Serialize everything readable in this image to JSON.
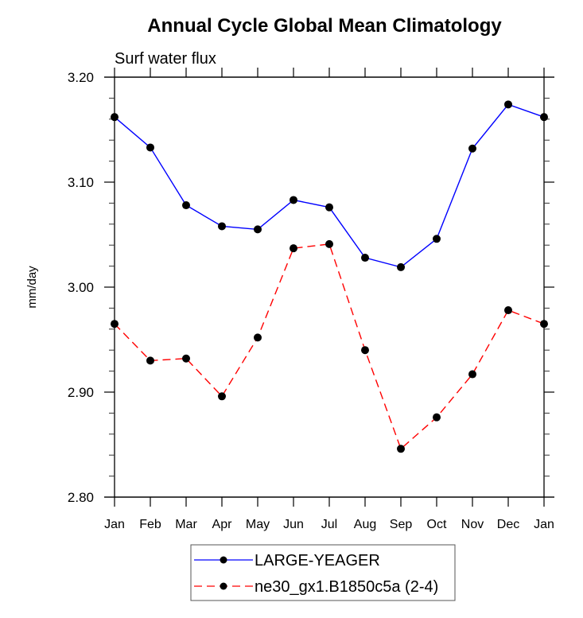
{
  "chart_data": {
    "type": "line",
    "title": "Annual Cycle Global Mean Climatology",
    "subtitle": "Surf water flux",
    "xlabel": "",
    "ylabel": "mm/day",
    "categories": [
      "Jan",
      "Feb",
      "Mar",
      "Apr",
      "May",
      "Jun",
      "Jul",
      "Aug",
      "Sep",
      "Oct",
      "Nov",
      "Dec",
      "Jan"
    ],
    "ylim": [
      2.8,
      3.2
    ],
    "yticks": [
      2.8,
      2.9,
      3.0,
      3.1,
      3.2
    ],
    "ytick_labels": [
      "2.80",
      "2.90",
      "3.00",
      "3.10",
      "3.20"
    ],
    "y_minor_step": 0.02,
    "grid": false,
    "legend_position": "bottom-center",
    "series": [
      {
        "name": "LARGE-YEAGER",
        "color": "#0000ff",
        "line_style": "solid",
        "marker": "filled-circle",
        "marker_color": "#000000",
        "values": [
          3.162,
          3.133,
          3.078,
          3.058,
          3.055,
          3.083,
          3.076,
          3.028,
          3.019,
          3.046,
          3.132,
          3.174,
          3.162
        ]
      },
      {
        "name": "ne30_gx1.B1850c5a (2-4)",
        "color": "#ff0000",
        "line_style": "dashed",
        "marker": "filled-circle",
        "marker_color": "#000000",
        "values": [
          2.965,
          2.93,
          2.932,
          2.896,
          2.952,
          3.037,
          3.041,
          2.94,
          2.846,
          2.876,
          2.917,
          2.978,
          2.965
        ]
      }
    ]
  }
}
